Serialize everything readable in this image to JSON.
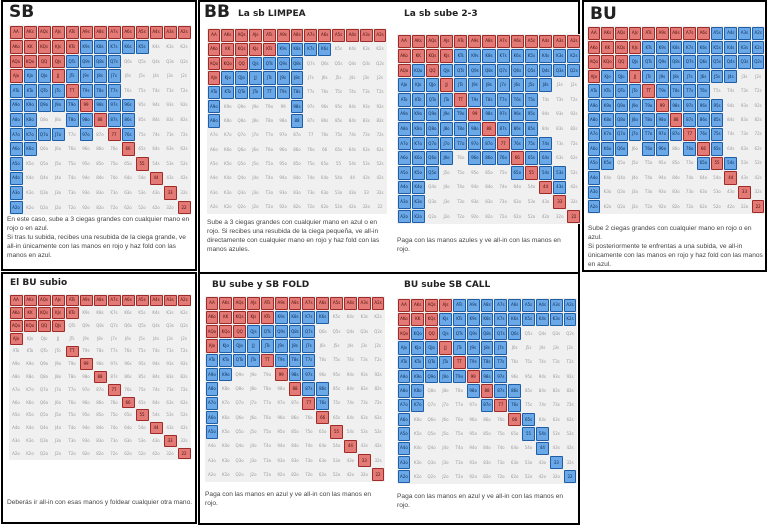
{
  "hands": [
    "AA",
    "AKs",
    "AQs",
    "AJs",
    "ATs",
    "A9s",
    "A8s",
    "A7s",
    "A6s",
    "A5s",
    "A4s",
    "A3s",
    "A2s",
    "AKo",
    "KK",
    "KQs",
    "KJs",
    "KTs",
    "K9s",
    "K8s",
    "K7s",
    "K6s",
    "K5s",
    "K4s",
    "K3s",
    "K2s",
    "AQo",
    "KQo",
    "QQ",
    "QJs",
    "QTs",
    "Q9s",
    "Q8s",
    "Q7s",
    "Q6s",
    "Q5s",
    "Q4s",
    "Q3s",
    "Q2s",
    "AJo",
    "KJo",
    "QJo",
    "JJ",
    "JTs",
    "J9s",
    "J8s",
    "J7s",
    "J6s",
    "J5s",
    "J4s",
    "J3s",
    "J2s",
    "ATo",
    "KTo",
    "QTo",
    "JTo",
    "TT",
    "T9s",
    "T8s",
    "T7s",
    "T6s",
    "T5s",
    "T4s",
    "T3s",
    "T2s",
    "A9o",
    "K9o",
    "Q9o",
    "J9o",
    "T9o",
    "99",
    "98s",
    "97s",
    "96s",
    "95s",
    "94s",
    "93s",
    "92s",
    "A8o",
    "K8o",
    "Q8o",
    "J8o",
    "T8o",
    "98o",
    "88",
    "87s",
    "86s",
    "85s",
    "84s",
    "83s",
    "82s",
    "A7o",
    "K7o",
    "Q7o",
    "J7o",
    "T7o",
    "97o",
    "87o",
    "77",
    "76s",
    "75s",
    "74s",
    "73s",
    "72s",
    "A6o",
    "K6o",
    "Q6o",
    "J6o",
    "T6o",
    "96o",
    "86o",
    "76o",
    "66",
    "65s",
    "64s",
    "63s",
    "62s",
    "A5o",
    "K5o",
    "Q5o",
    "J5o",
    "T5o",
    "95o",
    "85o",
    "75o",
    "65o",
    "55",
    "54s",
    "53s",
    "52s",
    "A4o",
    "K4o",
    "Q4o",
    "J4o",
    "T4o",
    "94o",
    "84o",
    "74o",
    "64o",
    "54o",
    "44",
    "43s",
    "42s",
    "A3o",
    "K3o",
    "Q3o",
    "J3o",
    "T3o",
    "93o",
    "83o",
    "73o",
    "63o",
    "53o",
    "43o",
    "33",
    "32s",
    "A2o",
    "K2o",
    "Q2o",
    "J2o",
    "T2o",
    "92o",
    "82o",
    "72o",
    "62o",
    "52o",
    "42o",
    "32o",
    "22"
  ],
  "colors": {
    "red": "#e47a75",
    "blue": "#6aa8e8",
    "border": "#000000"
  },
  "sections": {
    "sb": {
      "title": "SB",
      "desc": [
        "En este caso, sube a 3 ciegas grandes con cualquier mano en rojo o en azul.",
        "Si tras tu subida, recibes una resubida de la ciega grande, ve all-in únicamente con las manos en rojo y haz fold con las manos en azul."
      ]
    },
    "bb": {
      "title": "BB"
    },
    "bu": {
      "title": "BU",
      "desc": [
        "Sube 2 ciegas grandes con cualquier mano en rojo o en azul.",
        "Si posteriormente te enfrentas a una subida, ve all-in únicamente con las manos en rojo y haz fold con las manos en azul."
      ]
    },
    "bb_limp": {
      "title": "La sb LIMPEA",
      "desc": [
        "Sube a 3 ciegas grandes con cualquier mano en azul o en rojo. Si recibes una resubida de la ciega pequeña, ve all-in directamente con cualquier mano en rojo y haz fold con las manos azules."
      ]
    },
    "bb_raise": {
      "title": "La sb sube 2-3",
      "desc": [
        "Paga con las manos azules y ve all-in con las manos en rojo."
      ]
    },
    "sb_vs_bu": {
      "title": "El BU subio",
      "desc": [
        "Deberás ir all-in con esas manos y foldear cualquier otra mano."
      ]
    },
    "bb_sbfold": {
      "title": "BU sube y SB FOLD",
      "desc": [
        "Paga con las manos en azul y ve all-in con las manos en rojo."
      ]
    },
    "bb_sbcall": {
      "title": "BU sube SB CALL",
      "desc": [
        "Paga con las manos en azul y ve all-in con las manos en rojo."
      ]
    }
  },
  "ranges": {
    "sb": {
      "red": [
        "AA",
        "AKs",
        "AQs",
        "AJs",
        "ATs",
        "A9s",
        "A8s",
        "A7s",
        "A6s",
        "A5s",
        "A4s",
        "A3s",
        "A2s",
        "AKo",
        "KK",
        "KQs",
        "KJs",
        "KTs",
        "AQo",
        "KQo",
        "QQ",
        "QJs",
        "AJo",
        "JJ",
        "TT",
        "99",
        "88",
        "77",
        "66",
        "55",
        "44",
        "33",
        "22"
      ],
      "blue": [
        "K9s",
        "K8s",
        "K7s",
        "K6s",
        "K5s",
        "QTs",
        "Q9s",
        "Q8s",
        "Q7s",
        "KJo",
        "QJo",
        "JTs",
        "J9s",
        "J8s",
        "J7s",
        "ATo",
        "KTo",
        "QTo",
        "JTo",
        "T9s",
        "T8s",
        "T7s",
        "A9o",
        "K9o",
        "Q9o",
        "J9o",
        "T9o",
        "98s",
        "97s",
        "96s",
        "A8o",
        "K8o",
        "T8o",
        "98o",
        "87s",
        "86s",
        "A7o",
        "K7o",
        "Q7o",
        "J7o",
        "97o",
        "76s",
        "A6o",
        "K6o",
        "A5o",
        "A4o",
        "A3o",
        "A2o"
      ]
    },
    "bb_limp": {
      "red": [
        "AA",
        "AKs",
        "AQs",
        "AJs",
        "ATs",
        "A9s",
        "A8s",
        "A7s",
        "A6s",
        "A5s",
        "A4s",
        "A3s",
        "A2s",
        "AKo",
        "KK",
        "KQs",
        "KJs",
        "KTs",
        "AQo",
        "KQo",
        "QQ",
        "AJo"
      ],
      "blue": [
        "K9s",
        "K8s",
        "K7s",
        "K6s",
        "QJs",
        "QTs",
        "Q9s",
        "Q8s",
        "KJo",
        "QJo",
        "JJ",
        "JTs",
        "J9s",
        "J8s",
        "ATo",
        "KTo",
        "QTo",
        "JTo",
        "TT",
        "T9s",
        "T8s",
        "A9o",
        "98s",
        "A8o",
        "88"
      ]
    },
    "bb_raise": {
      "red": [
        "AA",
        "AKs",
        "AQs",
        "AJs",
        "ATs",
        "A9s",
        "A8s",
        "A7s",
        "A6s",
        "A5s",
        "A4s",
        "A3s",
        "A2s",
        "AKo",
        "KK",
        "KQs",
        "KJs",
        "AQo",
        "QQ",
        "JJ",
        "TT",
        "99",
        "88",
        "77",
        "66",
        "55",
        "44",
        "33",
        "22"
      ],
      "blue": [
        "KTs",
        "K9s",
        "K8s",
        "K7s",
        "K6s",
        "K5s",
        "K4s",
        "K3s",
        "K2s",
        "KQo",
        "QJs",
        "QTs",
        "Q9s",
        "Q8s",
        "Q7s",
        "Q6s",
        "Q5s",
        "Q4s",
        "Q3s",
        "Q2s",
        "AJo",
        "KJo",
        "QJo",
        "JTs",
        "J9s",
        "J8s",
        "J7s",
        "J6s",
        "J5s",
        "J4s",
        "ATo",
        "KTo",
        "QTo",
        "JTo",
        "T9s",
        "T8s",
        "T7s",
        "T6s",
        "T5s",
        "A9o",
        "K9o",
        "Q9o",
        "J9o",
        "T9o",
        "98s",
        "97s",
        "96s",
        "95s",
        "A8o",
        "K8o",
        "Q8o",
        "J8o",
        "T8o",
        "98o",
        "87s",
        "86s",
        "85s",
        "A7o",
        "K7o",
        "Q7o",
        "J7o",
        "T7o",
        "97o",
        "87o",
        "76s",
        "75s",
        "74s",
        "A6o",
        "K6o",
        "Q6o",
        "J6o",
        "96o",
        "86o",
        "76o",
        "65s",
        "64s",
        "A5o",
        "K5o",
        "Q5o",
        "65o",
        "54s",
        "53s",
        "A4o",
        "K4o",
        "43s",
        "A3o",
        "K3o",
        "A2o",
        "K2o"
      ]
    },
    "bu": {
      "red": [
        "AA",
        "AKs",
        "AQs",
        "AJs",
        "ATs",
        "A9s",
        "A8s",
        "A7s",
        "A6s",
        "AKo",
        "KK",
        "KQs",
        "KJs",
        "AQo",
        "KQo",
        "QQ",
        "AJo",
        "JJ",
        "TT",
        "99",
        "88",
        "77",
        "66",
        "55",
        "44",
        "33",
        "22"
      ],
      "blue": [
        "A5s",
        "A4s",
        "A3s",
        "A2s",
        "KTs",
        "K9s",
        "K8s",
        "K7s",
        "K6s",
        "K5s",
        "K4s",
        "K3s",
        "K2s",
        "QJs",
        "QTs",
        "Q9s",
        "Q8s",
        "Q7s",
        "Q6s",
        "Q5s",
        "Q4s",
        "Q3s",
        "Q2s",
        "KJo",
        "QJo",
        "JTs",
        "J9s",
        "J8s",
        "J7s",
        "J6s",
        "J5s",
        "J4s",
        "ATo",
        "KTo",
        "QTo",
        "JTo",
        "T9s",
        "T8s",
        "T7s",
        "T6s",
        "A9o",
        "K9o",
        "Q9o",
        "J9o",
        "T9o",
        "98s",
        "97s",
        "96s",
        "95s",
        "A8o",
        "K8o",
        "Q8o",
        "J8o",
        "T8o",
        "98o",
        "87s",
        "86s",
        "85s",
        "A7o",
        "K7o",
        "Q7o",
        "J7o",
        "T7o",
        "97o",
        "87o",
        "76s",
        "75s",
        "A6o",
        "K6o",
        "Q6o",
        "T6o",
        "96o",
        "76o",
        "65s",
        "A5o",
        "K5o",
        "65o",
        "54s",
        "A4o",
        "A3o",
        "A2o"
      ]
    },
    "sb_vs_bu": {
      "red": [
        "AA",
        "AKs",
        "AQs",
        "AJs",
        "ATs",
        "A9s",
        "A8s",
        "A7s",
        "A6s",
        "A5s",
        "A4s",
        "A3s",
        "A2s",
        "AKo",
        "KK",
        "KQs",
        "KJs",
        "KTs",
        "AQo",
        "KQo",
        "QQ",
        "QJs",
        "AJo",
        "TT",
        "99",
        "88",
        "77",
        "66",
        "55",
        "44",
        "33",
        "22"
      ],
      "blue": []
    },
    "bb_sbfold": {
      "red": [
        "AA",
        "AKs",
        "AQs",
        "AJs",
        "ATs",
        "A9s",
        "A8s",
        "A7s",
        "A6s",
        "A5s",
        "A4s",
        "A3s",
        "A2s",
        "AKo",
        "KK",
        "KQs",
        "KJs",
        "KTs",
        "AQo",
        "KQo",
        "QQ",
        "AJo",
        "TT",
        "99",
        "88",
        "77",
        "66",
        "55",
        "44",
        "33",
        "22"
      ],
      "blue": [
        "K9s",
        "K8s",
        "K7s",
        "K6s",
        "QJs",
        "QTs",
        "Q9s",
        "Q8s",
        "Q7s",
        "KJo",
        "QJo",
        "JJ",
        "JTs",
        "J9s",
        "J8s",
        "J7s",
        "ATo",
        "KTo",
        "QTo",
        "JTo",
        "T9s",
        "T8s",
        "T7s",
        "A9o",
        "K9o",
        "98s",
        "97s",
        "A8o",
        "87s",
        "86s",
        "76s",
        "A7o",
        "A6o",
        "A5o"
      ]
    },
    "bb_sbcall": {
      "red": [
        "AA",
        "AKs",
        "AQs",
        "AJs",
        "AKo",
        "KK",
        "KQs",
        "AQo",
        "QQ",
        "JJ",
        "TT",
        "99",
        "88",
        "77",
        "66"
      ],
      "blue": [
        "ATs",
        "A9s",
        "A8s",
        "A7s",
        "A6s",
        "A5s",
        "A4s",
        "A3s",
        "A2s",
        "KJs",
        "KTs",
        "K9s",
        "K8s",
        "K7s",
        "K6s",
        "K5s",
        "K4s",
        "K3s",
        "K2s",
        "KQo",
        "QJs",
        "QTs",
        "Q9s",
        "Q8s",
        "Q7s",
        "Q6s",
        "AJo",
        "KJo",
        "QJo",
        "JTs",
        "J9s",
        "J8s",
        "J7s",
        "ATo",
        "KTo",
        "QTo",
        "JTo",
        "T9s",
        "T8s",
        "T7s",
        "A9o",
        "K9o",
        "Q9o",
        "J9o",
        "T9o",
        "98s",
        "97s",
        "A8o",
        "K8o",
        "98o",
        "87s",
        "86s",
        "A7o",
        "K7o",
        "87o",
        "76s",
        "A6o",
        "65s",
        "A5o",
        "55",
        "54s",
        "A4o",
        "44",
        "A3o",
        "33",
        "A2o",
        "22"
      ]
    }
  }
}
